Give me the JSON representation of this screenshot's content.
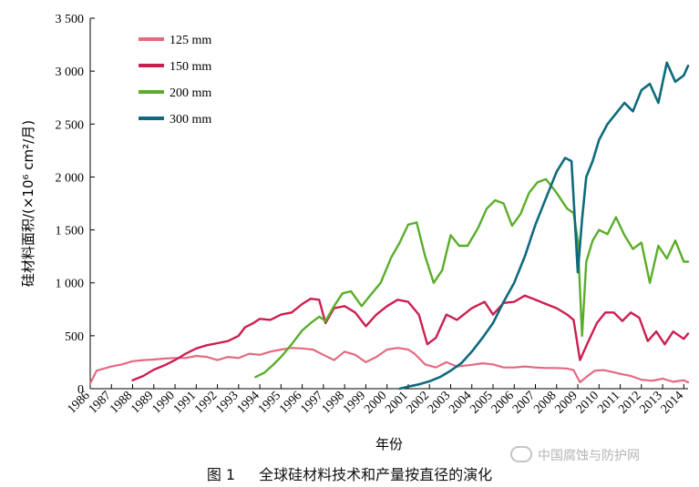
{
  "chart_data": {
    "type": "line",
    "title": "",
    "xlabel": "年份",
    "ylabel": "硅材料面积/(×10⁶ cm²/月)",
    "xlim": [
      1986,
      2014.2
    ],
    "ylim": [
      0,
      3500
    ],
    "y_ticks": [
      0,
      500,
      1000,
      1500,
      2000,
      2500,
      3000,
      3500
    ],
    "y_tick_labels": [
      "0",
      "500",
      "1 000",
      "1 500",
      "2 000",
      "2 500",
      "3 000",
      "3 500"
    ],
    "x_ticks": [
      1986,
      1987,
      1988,
      1989,
      1990,
      1991,
      1992,
      1993,
      1994,
      1995,
      1996,
      1997,
      1998,
      1999,
      2000,
      2001,
      2002,
      2003,
      2004,
      2005,
      2006,
      2007,
      2008,
      2009,
      2010,
      2011,
      2012,
      2013,
      2014
    ],
    "x_tick_labels": [
      "1986",
      "1987",
      "1988",
      "1989",
      "1990",
      "1991",
      "1992",
      "1993",
      "1994",
      "1995",
      "1996",
      "1997",
      "1998",
      "1999",
      "2000",
      "2001",
      "2002",
      "2003",
      "2004",
      "2005",
      "2006",
      "2007",
      "2008",
      "2009",
      "2010",
      "2011",
      "2012",
      "2013",
      "2014"
    ],
    "grid": false,
    "legend_position": "top-left",
    "series": [
      {
        "name": "125 mm",
        "color": "#e46a80",
        "width": 2.2,
        "x": [
          1986,
          1986.3,
          1987,
          1987.5,
          1988,
          1988.5,
          1989,
          1989.5,
          1990,
          1990.5,
          1991,
          1991.5,
          1992,
          1992.5,
          1993,
          1993.5,
          1994,
          1994.5,
          1995,
          1995.5,
          1996,
          1996.5,
          1997,
          1997.5,
          1998,
          1998.5,
          1999,
          1999.5,
          2000,
          2000.5,
          2001,
          2001.3,
          2001.8,
          2002.3,
          2002.8,
          2003.3,
          2004,
          2004.5,
          2005,
          2005.5,
          2006,
          2006.5,
          2007,
          2007.5,
          2008,
          2008.5,
          2008.8,
          2009.1,
          2009.4,
          2009.8,
          2010.2,
          2010.6,
          2011,
          2011.5,
          2012,
          2012.5,
          2013,
          2013.5,
          2014,
          2014.2
        ],
        "y": [
          50,
          170,
          210,
          230,
          260,
          270,
          275,
          285,
          290,
          290,
          310,
          300,
          270,
          300,
          290,
          330,
          320,
          350,
          370,
          385,
          380,
          370,
          320,
          270,
          350,
          320,
          250,
          300,
          370,
          385,
          370,
          330,
          230,
          200,
          250,
          210,
          225,
          240,
          230,
          200,
          200,
          210,
          200,
          195,
          195,
          190,
          175,
          60,
          110,
          170,
          175,
          160,
          140,
          120,
          85,
          75,
          95,
          65,
          80,
          60
        ]
      },
      {
        "name": "150 mm",
        "color": "#cc1f4f",
        "width": 2.4,
        "x": [
          1988,
          1988.5,
          1989,
          1989.5,
          1990,
          1990.5,
          1991,
          1991.5,
          1992,
          1992.5,
          1993,
          1993.3,
          1993.7,
          1994,
          1994.5,
          1995,
          1995.5,
          1996,
          1996.4,
          1996.8,
          1997.1,
          1997.5,
          1998,
          1998.5,
          1999,
          1999.5,
          2000,
          2000.5,
          2001,
          2001.5,
          2001.9,
          2002.3,
          2002.8,
          2003.3,
          2004,
          2004.6,
          2005,
          2005.5,
          2006,
          2006.5,
          2007,
          2007.5,
          2008,
          2008.5,
          2008.8,
          2009.1,
          2009.5,
          2009.9,
          2010.3,
          2010.7,
          2011.1,
          2011.5,
          2011.9,
          2012.3,
          2012.7,
          2013.1,
          2013.5,
          2014,
          2014.2
        ],
        "y": [
          80,
          120,
          180,
          220,
          270,
          330,
          380,
          410,
          430,
          450,
          500,
          580,
          620,
          660,
          650,
          700,
          720,
          800,
          850,
          840,
          620,
          760,
          780,
          720,
          590,
          700,
          780,
          840,
          820,
          700,
          420,
          480,
          700,
          650,
          760,
          820,
          700,
          810,
          820,
          880,
          840,
          800,
          760,
          700,
          650,
          270,
          450,
          620,
          720,
          720,
          640,
          720,
          670,
          450,
          540,
          420,
          540,
          470,
          520
        ]
      },
      {
        "name": "200 mm",
        "color": "#5aad2a",
        "width": 2.4,
        "x": [
          1993.8,
          1994.2,
          1994.6,
          1995,
          1995.5,
          1996,
          1996.4,
          1996.8,
          1997.1,
          1997.5,
          1997.9,
          1998.3,
          1998.8,
          1999.2,
          1999.7,
          2000.2,
          2000.6,
          2001,
          2001.4,
          2001.8,
          2002.2,
          2002.6,
          2003,
          2003.4,
          2003.8,
          2004.3,
          2004.7,
          2005.1,
          2005.5,
          2005.9,
          2006.3,
          2006.7,
          2007.1,
          2007.5,
          2008,
          2008.5,
          2008.8,
          2009,
          2009.2,
          2009.4,
          2009.7,
          2010,
          2010.4,
          2010.8,
          2011.2,
          2011.6,
          2012,
          2012.4,
          2012.8,
          2013.2,
          2013.6,
          2014,
          2014.2
        ],
        "y": [
          110,
          150,
          220,
          300,
          420,
          550,
          620,
          680,
          640,
          780,
          900,
          920,
          780,
          880,
          1000,
          1240,
          1380,
          1550,
          1570,
          1250,
          1000,
          1120,
          1450,
          1350,
          1350,
          1520,
          1700,
          1780,
          1750,
          1540,
          1650,
          1850,
          1950,
          1980,
          1850,
          1700,
          1660,
          1400,
          500,
          1200,
          1400,
          1500,
          1460,
          1620,
          1450,
          1320,
          1380,
          1000,
          1350,
          1230,
          1400,
          1200,
          1200
        ]
      },
      {
        "name": "300 mm",
        "color": "#0e6a7c",
        "width": 2.6,
        "x": [
          2000.6,
          2001,
          2001.5,
          2002,
          2002.5,
          2003,
          2003.5,
          2004,
          2004.5,
          2005,
          2005.5,
          2006,
          2006.5,
          2007,
          2007.5,
          2008,
          2008.4,
          2008.7,
          2009,
          2009.2,
          2009.4,
          2009.7,
          2010,
          2010.4,
          2010.8,
          2011.2,
          2011.6,
          2012,
          2012.4,
          2012.8,
          2013.2,
          2013.6,
          2014,
          2014.2
        ],
        "y": [
          0,
          20,
          40,
          70,
          110,
          170,
          240,
          350,
          480,
          620,
          820,
          1000,
          1250,
          1550,
          1800,
          2050,
          2180,
          2150,
          1100,
          1600,
          2000,
          2150,
          2350,
          2500,
          2600,
          2700,
          2620,
          2820,
          2880,
          2700,
          3080,
          2900,
          2960,
          3050
        ]
      }
    ]
  },
  "caption": {
    "figure_number": "图 1",
    "text": "全球硅材料技术和产量按直径的演化"
  },
  "watermark": {
    "text": "中国腐蚀与防护网"
  }
}
